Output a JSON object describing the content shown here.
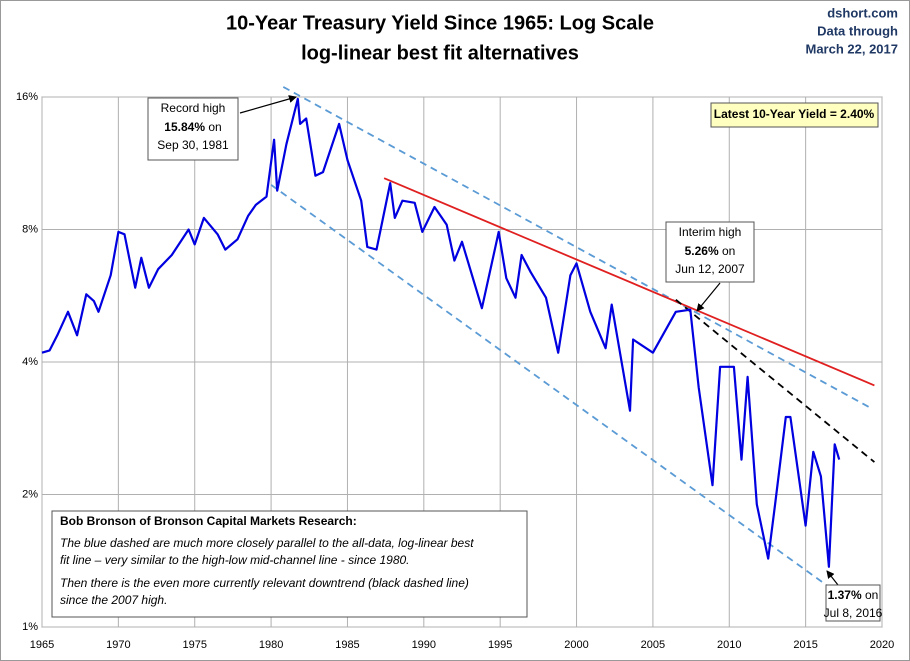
{
  "chart_data": {
    "type": "line",
    "title": "10-Year Treasury Yield Since 1965: Log Scale",
    "subtitle": "log-linear best fit alternatives",
    "source": [
      "dshort.com",
      "Data through",
      "March 22, 2017"
    ],
    "log_scale_y": true,
    "grid": true,
    "xlim": [
      1965,
      2020
    ],
    "xticks": [
      1965,
      1970,
      1975,
      1980,
      1985,
      1990,
      1995,
      2000,
      2005,
      2010,
      2015,
      2020
    ],
    "ylim": [
      1,
      16
    ],
    "yticks": [
      {
        "value": 1,
        "label": "1%"
      },
      {
        "value": 2,
        "label": "2%"
      },
      {
        "value": 4,
        "label": "4%"
      },
      {
        "value": 8,
        "label": "8%"
      },
      {
        "value": 16,
        "label": "16%"
      }
    ],
    "series": [
      {
        "color": "#0000e0",
        "x": [
          1965.0,
          1965.5,
          1966.0,
          1966.7,
          1967.3,
          1967.9,
          1968.4,
          1968.7,
          1969.5,
          1970.0,
          1970.4,
          1971.1,
          1971.5,
          1972.0,
          1972.6,
          1973.5,
          1974.6,
          1975.0,
          1975.6,
          1976.5,
          1977.0,
          1977.8,
          1978.5,
          1979.0,
          1979.7,
          1980.2,
          1980.4,
          1981.0,
          1981.75,
          1981.9,
          1982.3,
          1982.9,
          1983.4,
          1984.45,
          1985.0,
          1985.9,
          1986.3,
          1986.9,
          1987.8,
          1988.1,
          1988.6,
          1989.4,
          1989.9,
          1990.7,
          1991.5,
          1992.0,
          1992.5,
          1993.8,
          1994.9,
          1995.4,
          1996.0,
          1996.4,
          1997.0,
          1998.0,
          1998.8,
          1999.6,
          2000.0,
          2000.9,
          2001.9,
          2002.3,
          2003.5,
          2003.7,
          2005.0,
          2006.5,
          2007.45,
          2008.0,
          2008.9,
          2009.4,
          2010.3,
          2010.8,
          2011.2,
          2011.8,
          2012.55,
          2013.0,
          2013.7,
          2014.0,
          2015.0,
          2015.5,
          2016.0,
          2016.52,
          2016.9,
          2017.2
        ],
        "values": [
          4.2,
          4.25,
          4.6,
          5.2,
          4.6,
          5.7,
          5.5,
          5.2,
          6.3,
          7.9,
          7.8,
          5.9,
          6.9,
          5.9,
          6.5,
          7.0,
          8.0,
          7.4,
          8.5,
          7.8,
          7.2,
          7.6,
          8.6,
          9.1,
          9.5,
          12.8,
          9.8,
          12.5,
          15.84,
          13.9,
          14.3,
          10.6,
          10.8,
          13.9,
          11.5,
          9.3,
          7.3,
          7.2,
          10.2,
          8.5,
          9.3,
          9.2,
          7.9,
          9.0,
          8.2,
          6.8,
          7.5,
          5.3,
          7.9,
          6.2,
          5.6,
          7.0,
          6.4,
          5.6,
          4.2,
          6.3,
          6.7,
          5.2,
          4.3,
          5.4,
          3.1,
          4.5,
          4.2,
          5.2,
          5.26,
          3.5,
          2.1,
          3.9,
          3.9,
          2.4,
          3.7,
          1.9,
          1.43,
          1.9,
          3.0,
          3.0,
          1.7,
          2.5,
          2.2,
          1.37,
          2.6,
          2.4
        ]
      }
    ],
    "trend_lines": [
      {
        "color": "#5b9bd5",
        "dashed": true,
        "x": [
          1980.8,
          2019.3
        ],
        "values": [
          16.87,
          3.14
        ]
      },
      {
        "color": "#5b9bd5",
        "dashed": true,
        "x": [
          1980.0,
          2018.2
        ],
        "values": [
          10.1,
          1.12
        ]
      },
      {
        "color": "#e02020",
        "dashed": false,
        "x": [
          1987.4,
          2019.5
        ],
        "values": [
          10.46,
          3.54
        ]
      },
      {
        "color": "#000000",
        "dashed": true,
        "x": [
          2006.5,
          2019.5
        ],
        "values": [
          5.54,
          2.37
        ]
      }
    ],
    "annotations": [
      {
        "line1": "Record high",
        "bold": "15.84%",
        "after": "on",
        "line3": "Sep 30, 1981"
      },
      {
        "line1": "Interim high",
        "bold": "5.26%",
        "after": "on",
        "line3": "Jun 12, 2007"
      },
      {
        "bold": "1.37%",
        "after": "on",
        "line3": "Jul 8, 2016"
      }
    ],
    "latest_label": "Latest 10-Year Yield = 2.40%",
    "note": {
      "heading": "Bob Bronson of Bronson Capital Markets Research:",
      "para1": [
        "The blue dashed are much more closely parallel to the all-data, log-linear best",
        "fit line – very similar to the high-low mid-channel line - since 1980."
      ],
      "para2": [
        "Then there is the even more currently relevant downtrend (black dashed line)",
        "since the 2007 high."
      ]
    }
  }
}
